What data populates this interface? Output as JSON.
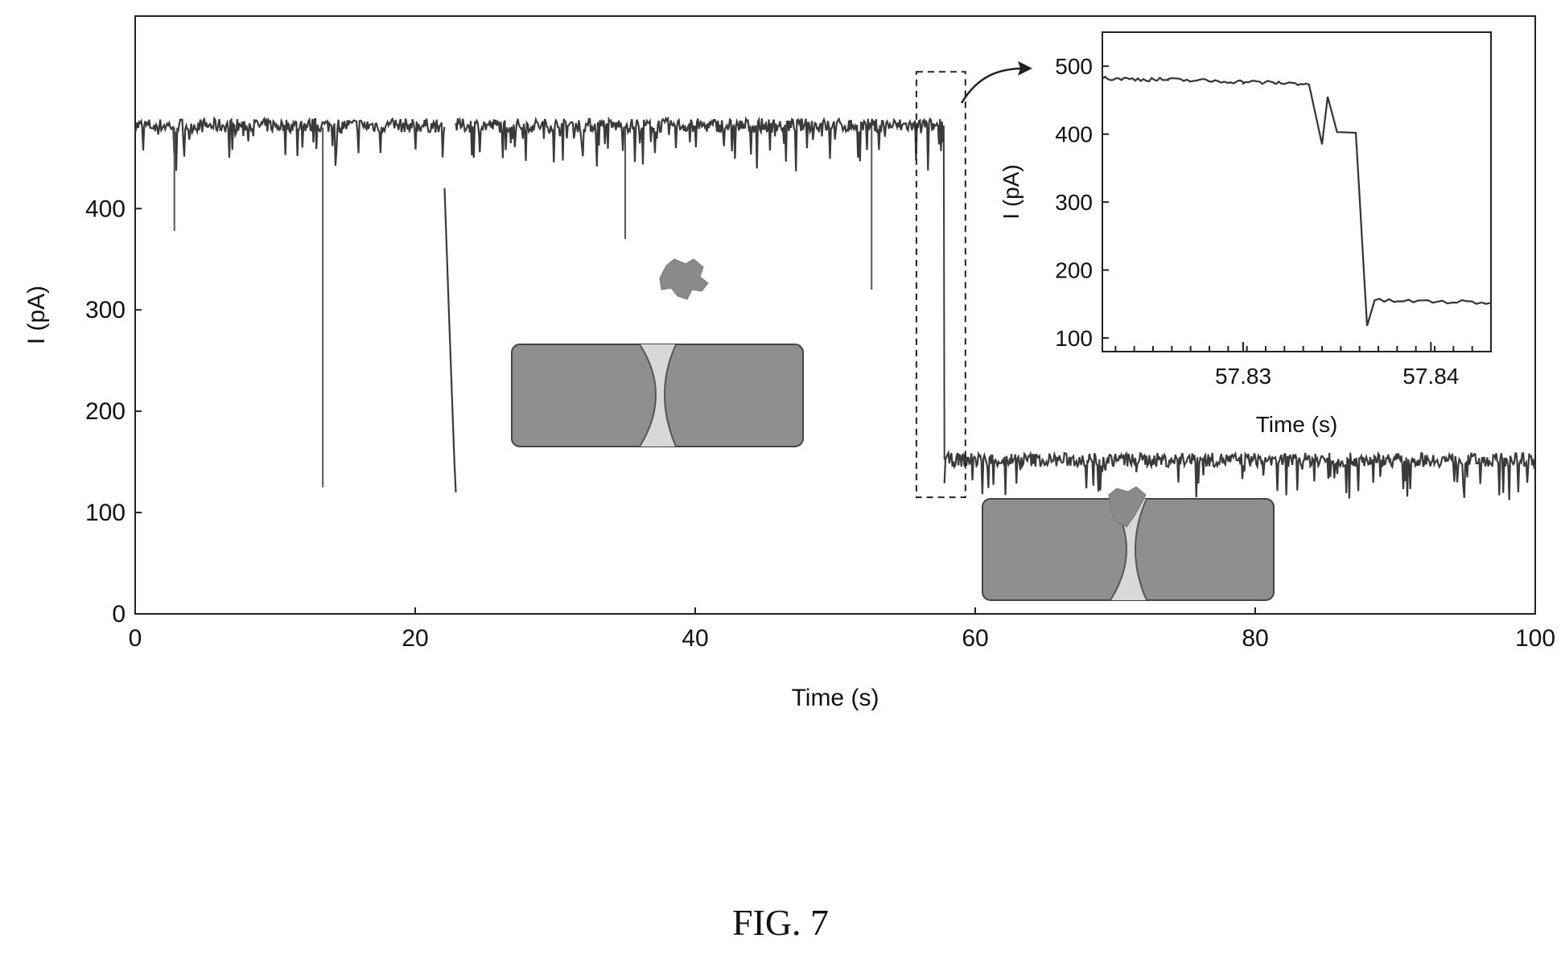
{
  "figure_label": "FIG. 7",
  "chart_data": [
    {
      "type": "line",
      "xlabel": "Time (s)",
      "ylabel": "I (pA)",
      "xlim": [
        0,
        100
      ],
      "ylim": [
        0,
        590
      ],
      "x_ticks": [
        0,
        20,
        40,
        60,
        80,
        100
      ],
      "y_ticks": [
        0,
        100,
        200,
        300,
        400
      ],
      "series_segments": [
        {
          "x": [
            0,
            22.1
          ],
          "y": [
            482,
            482
          ]
        },
        {
          "x": [
            22.1,
            22.4,
            22.8,
            22.9
          ],
          "y": [
            420,
            300,
            150,
            120
          ]
        },
        {
          "x": [
            22.9,
            57.7
          ],
          "y": [
            482,
            482
          ]
        },
        {
          "x": [
            57.8,
            100
          ],
          "y": [
            152,
            152
          ]
        }
      ],
      "spikes": [
        {
          "x": 2.8,
          "y": 378
        },
        {
          "x": 13.4,
          "y": 125
        },
        {
          "x": 35.0,
          "y": 370
        },
        {
          "x": 52.6,
          "y": 320
        }
      ],
      "zoom_box_x": [
        55.8,
        59.3
      ],
      "zoom_box_y": [
        115,
        535
      ]
    },
    {
      "type": "line",
      "xlabel": "Time (s)",
      "ylabel": "I (pA)",
      "xlim": [
        57.8225,
        57.8432
      ],
      "ylim": [
        80,
        550
      ],
      "x_tick_labels": [
        "57.83",
        "57.84"
      ],
      "x_ticks": [
        57.83,
        57.84
      ],
      "y_ticks": [
        100,
        200,
        300,
        400,
        500
      ],
      "x": [
        57.8225,
        57.826,
        57.83,
        57.8335,
        57.8342,
        57.8345,
        57.835,
        57.836,
        57.8366,
        57.837,
        57.8432
      ],
      "y": [
        482,
        480,
        477,
        474,
        385,
        455,
        403,
        402,
        118,
        155,
        152
      ]
    }
  ]
}
